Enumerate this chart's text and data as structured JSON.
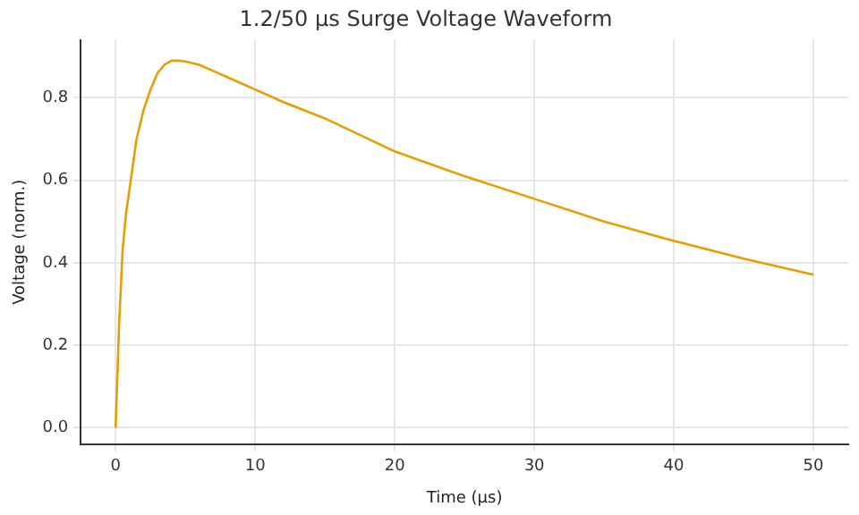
{
  "chart_data": {
    "type": "line",
    "title": "1.2/50 µs Surge Voltage Waveform",
    "xlabel": "Time (µs)",
    "ylabel": "Voltage (norm.)",
    "xlim": [
      -2.5,
      52.5
    ],
    "ylim": [
      -0.04,
      0.94
    ],
    "xticks": [
      0,
      10,
      20,
      30,
      40,
      50
    ],
    "yticks": [
      {
        "value": 0,
        "label": "0.0"
      },
      {
        "value": 0.2,
        "label": "0.2"
      },
      {
        "value": 0.4,
        "label": "0.4"
      },
      {
        "value": 0.6,
        "label": "0.6"
      },
      {
        "value": 0.8,
        "label": "0.8"
      }
    ],
    "grid": true,
    "legend": false,
    "marker": "none",
    "line_style": "solid",
    "series": [
      {
        "color": "#e69f00",
        "x": [
          0,
          0.25,
          0.5,
          0.75,
          1,
          1.5,
          2,
          2.5,
          3,
          3.5,
          4,
          4.5,
          5,
          6,
          7,
          8,
          10,
          12,
          15,
          20,
          25,
          30,
          35,
          40,
          45,
          50
        ],
        "values": [
          0,
          0.25,
          0.43,
          0.52,
          0.58,
          0.7,
          0.77,
          0.82,
          0.86,
          0.88,
          0.89,
          0.89,
          0.888,
          0.88,
          0.865,
          0.85,
          0.82,
          0.79,
          0.75,
          0.67,
          0.61,
          0.555,
          0.5,
          0.453,
          0.41,
          0.371
        ]
      }
    ]
  }
}
